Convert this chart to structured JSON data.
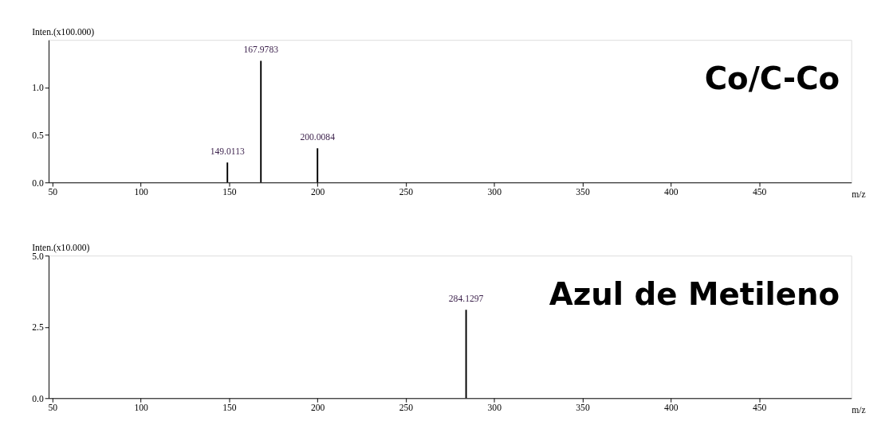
{
  "chart_data": [
    {
      "type": "bar",
      "ylabel": "Inten.(x100.000)",
      "xlabel": "m/z",
      "x": [
        149.0113,
        167.9783,
        200.0084
      ],
      "series": [
        {
          "color": "#000000",
          "values": [
            0.21,
            1.28,
            0.36
          ]
        }
      ],
      "xlim": [
        50,
        500
      ],
      "xticks": [
        50,
        100,
        150,
        200,
        250,
        300,
        350,
        400,
        450
      ],
      "ylim": [
        0,
        1.5
      ],
      "yticks": [
        {
          "value": 0,
          "label": "0.0"
        },
        0.5,
        {
          "value": 1,
          "label": "1.0"
        }
      ],
      "grid": false,
      "annotations": [
        {
          "text": "149.0113",
          "x": 149.0113,
          "y": 0.21
        },
        {
          "text": "167.9783",
          "x": 167.9783,
          "y": 1.28
        },
        {
          "text": "200.0084",
          "x": 200.0084,
          "y": 0.36
        },
        "Co/C-Co"
      ]
    },
    {
      "type": "bar",
      "ylabel": "Inten.(x10.000)",
      "xlabel": "m/z",
      "x": [
        284.1297
      ],
      "series": [
        {
          "color": "#000000",
          "values": [
            3.1
          ]
        }
      ],
      "xlim": [
        50,
        500
      ],
      "xticks": [
        50,
        100,
        150,
        200,
        250,
        300,
        350,
        400,
        450
      ],
      "ylim": [
        0,
        5
      ],
      "yticks": [
        {
          "value": 0,
          "label": "0.0"
        },
        2.5,
        {
          "value": 5,
          "label": "5.0"
        }
      ],
      "grid": false,
      "annotations": [
        {
          "text": "284.1297",
          "x": 284.1297,
          "y": 3.1
        },
        "Azul de Metileno"
      ]
    }
  ]
}
